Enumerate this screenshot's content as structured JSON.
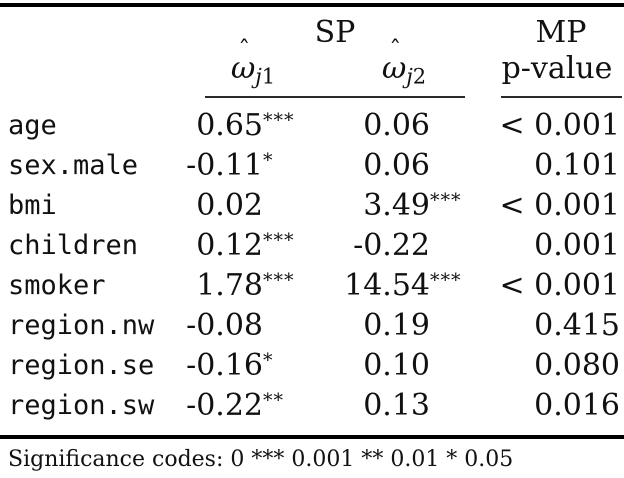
{
  "table": {
    "group_headers": [
      {
        "label": "SP"
      },
      {
        "label": "MP"
      }
    ],
    "col_headers": [
      {
        "omega": "ω",
        "hat": "ˆ",
        "sub_letter": "j",
        "sub_digit": "1"
      },
      {
        "omega": "ω",
        "hat": "ˆ",
        "sub_letter": "j",
        "sub_digit": "2"
      }
    ],
    "p_header": "p-value",
    "rows": [
      {
        "label": "age",
        "w1": "0.65",
        "w1_stars": "***",
        "w2": "0.06",
        "w2_stars": "",
        "p": "< 0.001"
      },
      {
        "label": "sex.male",
        "w1": "-0.11",
        "w1_stars": "*",
        "w2": "0.06",
        "w2_stars": "",
        "p": "0.101"
      },
      {
        "label": "bmi",
        "w1": "0.02",
        "w1_stars": "",
        "w2": "3.49",
        "w2_stars": "***",
        "p": "< 0.001"
      },
      {
        "label": "children",
        "w1": "0.12",
        "w1_stars": "***",
        "w2": "-0.22",
        "w2_stars": "",
        "p": "0.001"
      },
      {
        "label": "smoker",
        "w1": "1.78",
        "w1_stars": "***",
        "w2": "14.54",
        "w2_stars": "***",
        "p": "< 0.001"
      },
      {
        "label": "region.nw",
        "w1": "-0.08",
        "w1_stars": "",
        "w2": "0.19",
        "w2_stars": "",
        "p": "0.415"
      },
      {
        "label": "region.se",
        "w1": "-0.16",
        "w1_stars": "*",
        "w2": "0.10",
        "w2_stars": "",
        "p": "0.080"
      },
      {
        "label": "region.sw",
        "w1": "-0.22",
        "w1_stars": "**",
        "w2": "0.13",
        "w2_stars": "",
        "p": "0.016"
      }
    ],
    "footnote": "Significance codes: 0 *** 0.001 ** 0.01 * 0.05",
    "colors": {
      "text": "#111111",
      "rule": "#000000",
      "background": "#ffffff"
    },
    "layout": {
      "row_top_start": 106,
      "row_pitch": 40
    }
  }
}
